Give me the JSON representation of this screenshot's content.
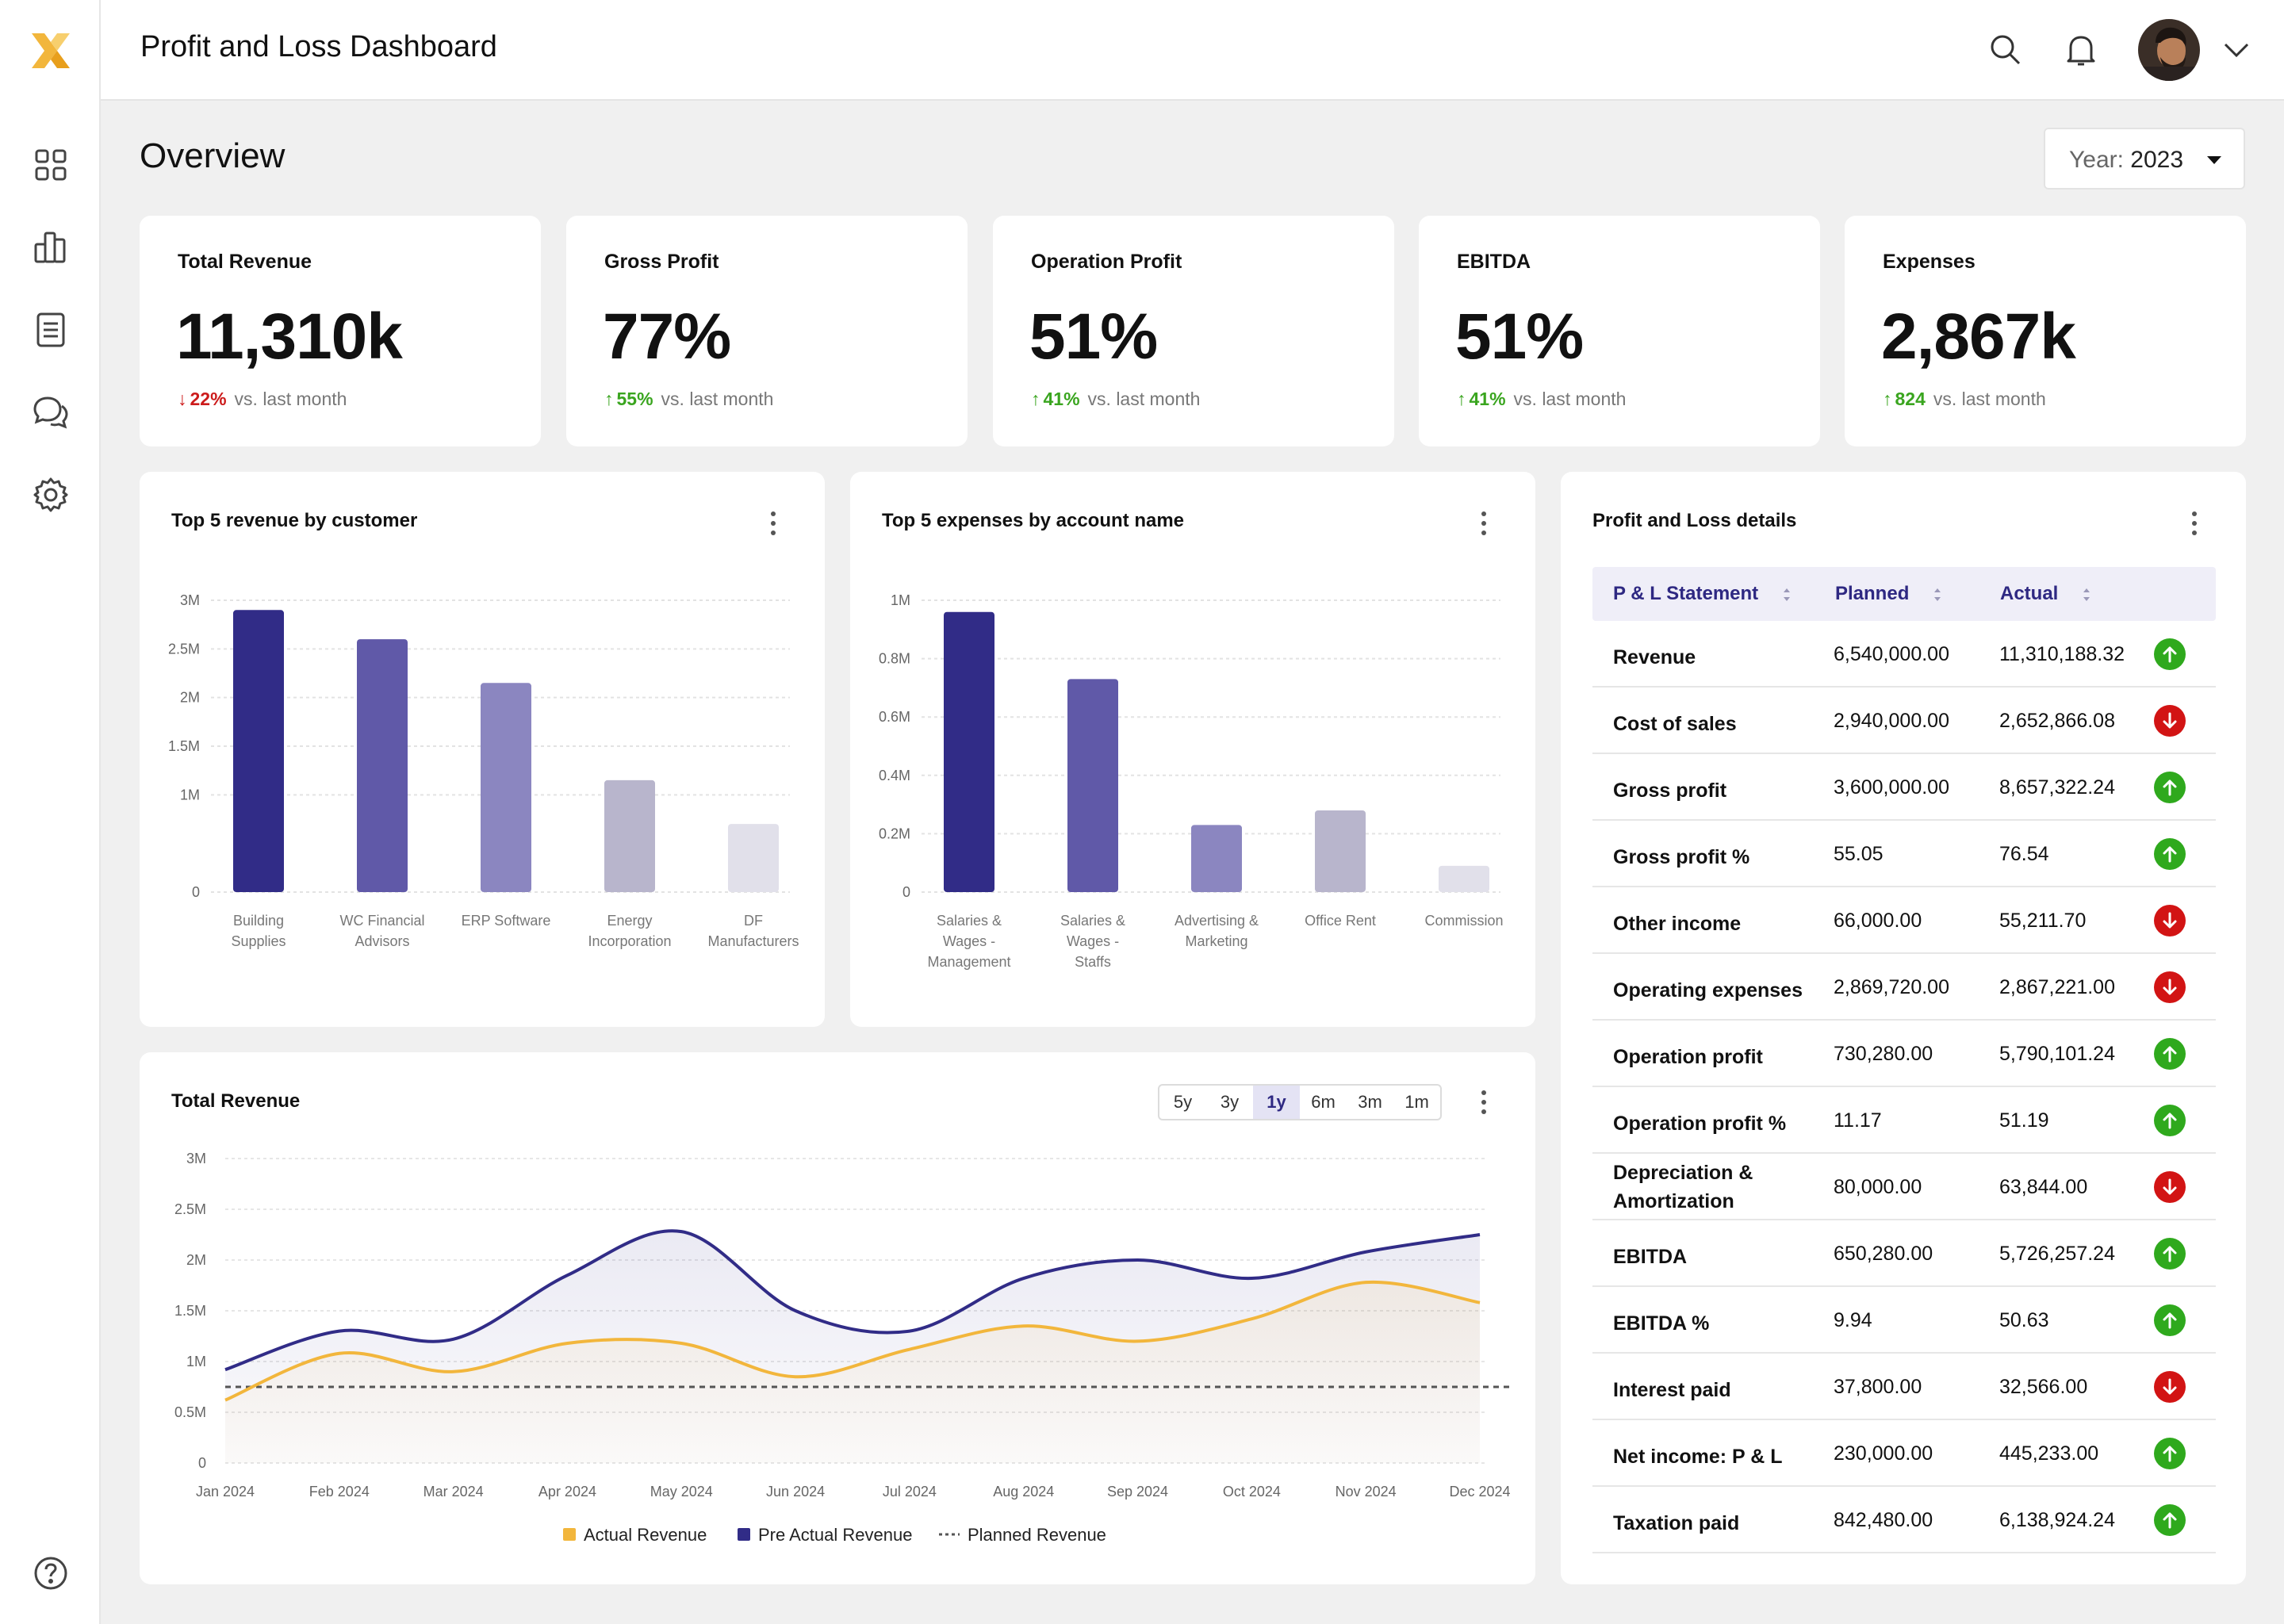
{
  "app": {
    "title": "Profit and Loss Dashboard"
  },
  "sidebar": {
    "items": [
      {
        "name": "dashboard",
        "icon": "grid-icon"
      },
      {
        "name": "analytics",
        "icon": "bar-chart-icon"
      },
      {
        "name": "reports",
        "icon": "document-icon"
      },
      {
        "name": "messages",
        "icon": "chat-icon"
      },
      {
        "name": "settings",
        "icon": "gear-icon"
      }
    ],
    "help_icon": "help-icon"
  },
  "overview": {
    "title": "Overview",
    "year_label": "Year:",
    "year_value": "2023"
  },
  "kpis": [
    {
      "label": "Total Revenue",
      "value": "11,310k",
      "delta": "22%",
      "direction": "down",
      "suffix": "vs. last month"
    },
    {
      "label": "Gross Profit",
      "value": "77%",
      "delta": "55%",
      "direction": "up",
      "suffix": "vs. last month"
    },
    {
      "label": "Operation Profit",
      "value": "51%",
      "delta": "41%",
      "direction": "up",
      "suffix": "vs. last month"
    },
    {
      "label": "EBITDA",
      "value": "51%",
      "delta": "41%",
      "direction": "up",
      "suffix": "vs. last month"
    },
    {
      "label": "Expenses",
      "value": "2,867k",
      "delta": "824",
      "direction": "up",
      "suffix": "vs. last month"
    }
  ],
  "revenue_chart_title": "Top 5 revenue by customer",
  "expenses_chart_title": "Top 5 expenses by account name",
  "total_revenue_title": "Total Revenue",
  "range_tabs": [
    "5y",
    "3y",
    "1y",
    "6m",
    "3m",
    "1m"
  ],
  "active_range": "1y",
  "colors": {
    "bar1": "#312c87",
    "bar2": "#6059a8",
    "bar3": "#8b86c0",
    "bar4": "#b8b5cc",
    "bar5": "#e1e0ea",
    "actual": "#f2b63c",
    "pre_actual": "#312c87",
    "planned": "#555555"
  },
  "chart_data": [
    {
      "type": "bar",
      "title": "Top 5 revenue by customer",
      "categories": [
        [
          "Building",
          "Supplies"
        ],
        [
          "WC Financial",
          "Advisors"
        ],
        [
          "ERP Software"
        ],
        [
          "Energy",
          "Incorporation"
        ],
        [
          "DF",
          "Manufacturers"
        ]
      ],
      "values": [
        2.9,
        2.6,
        2.15,
        1.15,
        0.7
      ],
      "ylim": [
        0,
        3
      ],
      "yticks": [
        "0",
        "1M",
        "1.5M",
        "2M",
        "2.5M",
        "3M"
      ],
      "ytick_values": [
        0,
        1,
        1.5,
        2,
        2.5,
        3
      ]
    },
    {
      "type": "bar",
      "title": "Top 5 expenses by account name",
      "categories": [
        [
          "Salaries &",
          "Wages -",
          "Management"
        ],
        [
          "Salaries &",
          "Wages -",
          "Staffs"
        ],
        [
          "Advertising &",
          "Marketing"
        ],
        [
          "Office Rent"
        ],
        [
          "Commission"
        ]
      ],
      "values": [
        0.96,
        0.73,
        0.23,
        0.28,
        0.09
      ],
      "ylim": [
        0,
        1
      ],
      "yticks": [
        "0",
        "0.2M",
        "0.4M",
        "0.6M",
        "0.8M",
        "1M"
      ],
      "ytick_values": [
        0,
        0.2,
        0.4,
        0.6,
        0.8,
        1
      ]
    },
    {
      "type": "line",
      "title": "Total Revenue",
      "x": [
        "Jan 2024",
        "Feb 2024",
        "Mar 2024",
        "Apr 2024",
        "May 2024",
        "Jun 2024",
        "Jul 2024",
        "Aug 2024",
        "Sep 2024",
        "Oct 2024",
        "Nov 2024",
        "Dec 2024"
      ],
      "series": [
        {
          "name": "Actual Revenue",
          "values": [
            0.62,
            1.08,
            0.9,
            1.18,
            1.18,
            0.85,
            1.12,
            1.35,
            1.2,
            1.42,
            1.78,
            1.58
          ]
        },
        {
          "name": "Pre Actual Revenue",
          "values": [
            0.92,
            1.3,
            1.22,
            1.85,
            2.28,
            1.5,
            1.3,
            1.82,
            2.0,
            1.82,
            2.08,
            2.25
          ]
        },
        {
          "name": "Planned Revenue",
          "values": [
            0.75,
            0.75,
            0.75,
            0.75,
            0.75,
            0.75,
            0.75,
            0.75,
            0.75,
            0.75,
            0.75,
            0.75
          ]
        }
      ],
      "ylim": [
        0,
        3
      ],
      "yticks": [
        "0",
        "0.5M",
        "1M",
        "1.5M",
        "2M",
        "2.5M",
        "3M"
      ],
      "ytick_values": [
        0,
        0.5,
        1,
        1.5,
        2,
        2.5,
        3
      ]
    }
  ],
  "pl_details": {
    "title": "Profit and Loss details",
    "headers": [
      "P & L Statement",
      "Planned",
      "Actual"
    ],
    "rows": [
      {
        "label": "Revenue",
        "planned": "6,540,000.00",
        "actual": "11,310,188.32",
        "status": "up"
      },
      {
        "label": "Cost of sales",
        "planned": "2,940,000.00",
        "actual": "2,652,866.08",
        "status": "down"
      },
      {
        "label": "Gross profit",
        "planned": "3,600,000.00",
        "actual": "8,657,322.24",
        "status": "up"
      },
      {
        "label": "Gross profit %",
        "planned": "55.05",
        "actual": "76.54",
        "status": "up"
      },
      {
        "label": "Other income",
        "planned": "66,000.00",
        "actual": "55,211.70",
        "status": "down"
      },
      {
        "label": "Operating expenses",
        "planned": "2,869,720.00",
        "actual": "2,867,221.00",
        "status": "down"
      },
      {
        "label": "Operation profit",
        "planned": "730,280.00",
        "actual": "5,790,101.24",
        "status": "up"
      },
      {
        "label": "Operation profit %",
        "planned": "11.17",
        "actual": "51.19",
        "status": "up"
      },
      {
        "label": "Depreciation & Amortization",
        "planned": "80,000.00",
        "actual": "63,844.00",
        "status": "down"
      },
      {
        "label": "EBITDA",
        "planned": "650,280.00",
        "actual": "5,726,257.24",
        "status": "up"
      },
      {
        "label": "EBITDA %",
        "planned": "9.94",
        "actual": "50.63",
        "status": "up"
      },
      {
        "label": "Interest paid",
        "planned": "37,800.00",
        "actual": "32,566.00",
        "status": "down"
      },
      {
        "label": "Net income: P & L",
        "planned": "230,000.00",
        "actual": "445,233.00",
        "status": "up"
      },
      {
        "label": "Taxation paid",
        "planned": "842,480.00",
        "actual": "6,138,924.24",
        "status": "up"
      }
    ]
  }
}
